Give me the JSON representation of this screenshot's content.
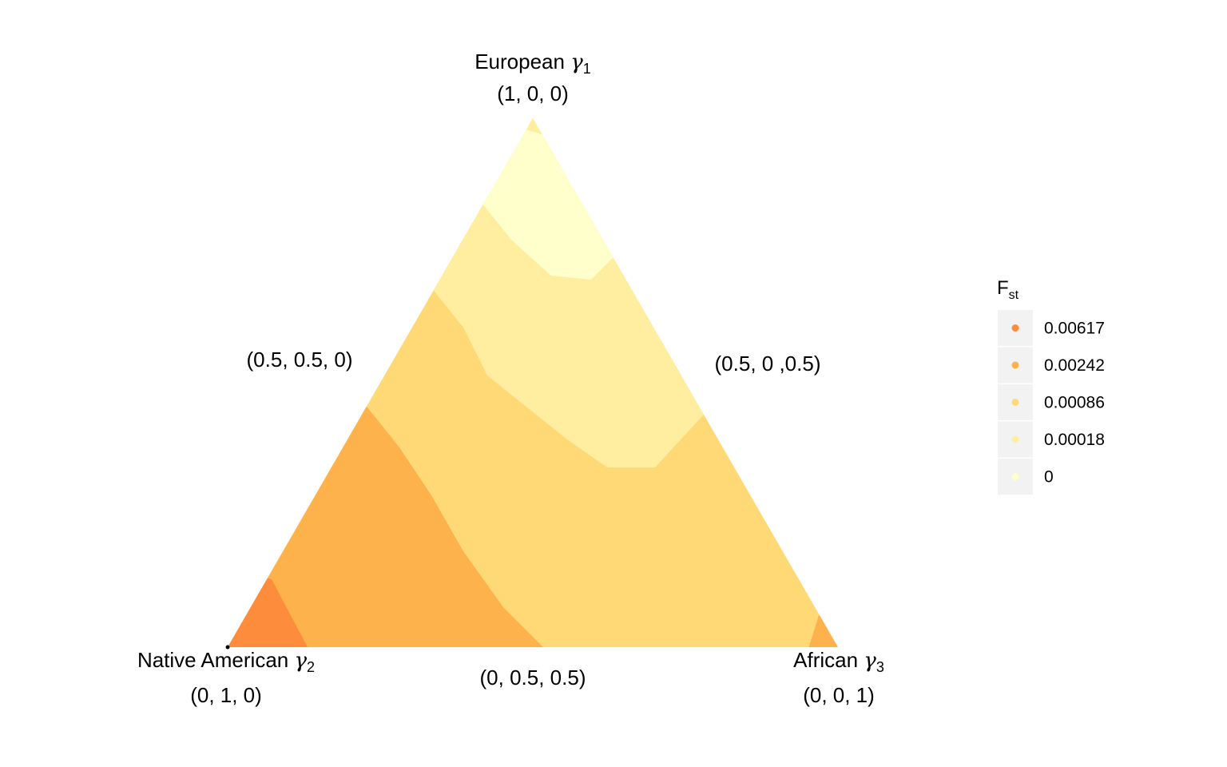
{
  "chart_data": {
    "type": "ternary-contour",
    "vertices": [
      {
        "name": "European",
        "symbol": "γ",
        "index": "1",
        "coords": "(1, 0, 0)",
        "color": "#FFFFCC"
      },
      {
        "name": "Native American",
        "symbol": "γ",
        "index": "2",
        "coords": "(0, 1, 0)",
        "color": "#FD8D3C"
      },
      {
        "name": "African",
        "symbol": "γ",
        "index": "3",
        "coords": "(0, 0, 1)",
        "color": "#FEB24C"
      }
    ],
    "edge_midpoints": [
      {
        "position": "left-edge",
        "label": "(0.5, 0.5, 0)"
      },
      {
        "position": "right-edge",
        "label": "(0.5, 0 ,0.5)"
      },
      {
        "position": "bottom-edge",
        "label": "(0, 0.5, 0.5)"
      }
    ],
    "legend": {
      "title": "F",
      "title_sub": "st",
      "placement": "right",
      "entries": [
        {
          "label": "0.00617",
          "color": "#FD8D3C"
        },
        {
          "label": "0.00242",
          "color": "#FEB24C"
        },
        {
          "label": "0.00086",
          "color": "#FED976"
        },
        {
          "label": "0.00018",
          "color": "#FFEDA0"
        },
        {
          "label": "0",
          "color": "#FFFFCC"
        }
      ]
    },
    "grid": false
  }
}
